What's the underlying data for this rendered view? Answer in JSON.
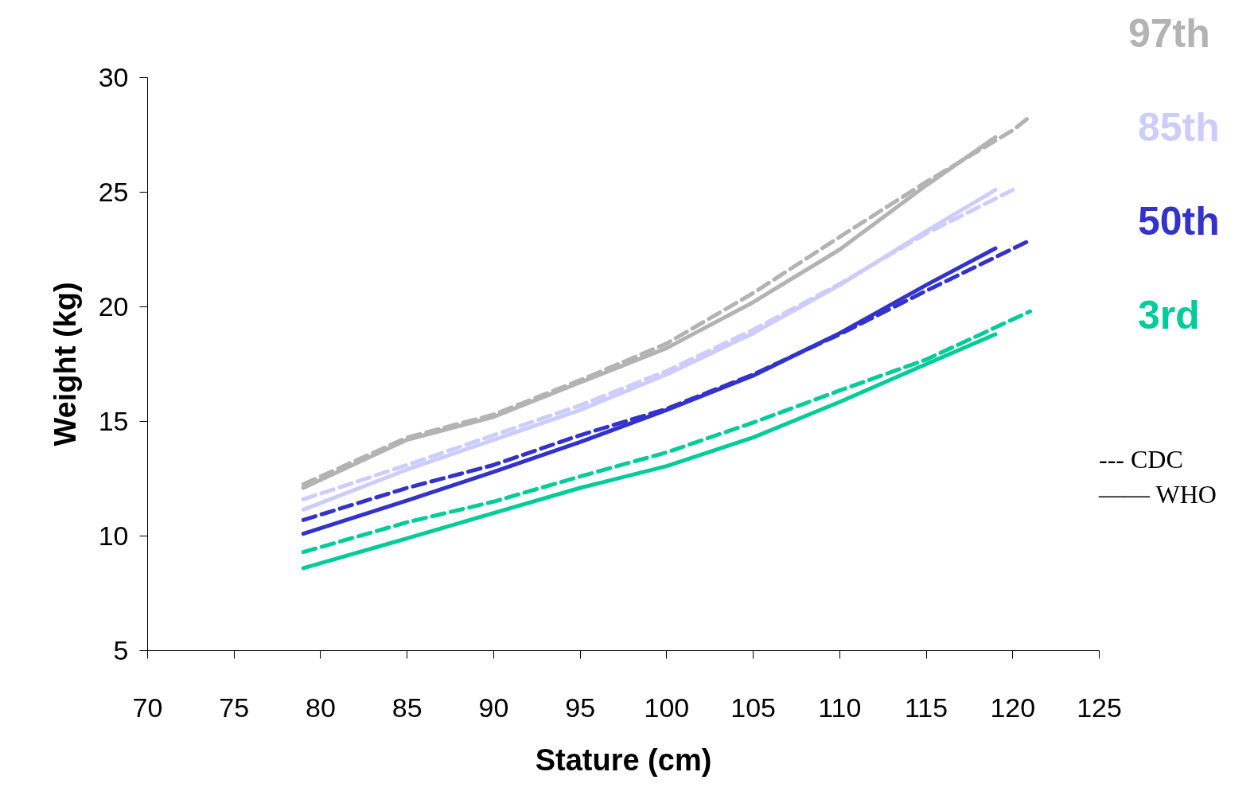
{
  "chart_data": {
    "type": "line",
    "xlabel": "Stature (cm)",
    "ylabel": "Weight (kg)",
    "xlim": [
      70,
      125
    ],
    "xticks": [
      70,
      75,
      80,
      85,
      90,
      95,
      100,
      105,
      110,
      115,
      120,
      125
    ],
    "ylim": [
      5,
      30
    ],
    "yticks": [
      5,
      10,
      15,
      20,
      25,
      30
    ],
    "grid": false,
    "annotations": [
      "--- CDC",
      "—— WHO"
    ],
    "series": [
      {
        "name": "97th",
        "color": "#b3b3b3",
        "line_style": "dashed",
        "x": [
          79,
          85,
          90,
          95,
          100,
          105,
          110,
          115,
          120,
          121
        ],
        "values": [
          12.26,
          14.3,
          15.3,
          16.8,
          18.4,
          20.6,
          23.05,
          25.45,
          27.7,
          28.3
        ]
      },
      {
        "color": "#b3b3b3",
        "line_style": "solid",
        "x": [
          79,
          85,
          90,
          95,
          100,
          105,
          110,
          115,
          119
        ],
        "values": [
          12.1,
          14.2,
          15.2,
          16.7,
          18.2,
          20.2,
          22.5,
          25.3,
          27.4
        ]
      },
      {
        "name": "85th",
        "color": "#ccccff",
        "line_style": "dashed",
        "x": [
          79,
          85,
          90,
          95,
          100,
          105,
          110,
          115,
          120
        ],
        "values": [
          11.6,
          13.1,
          14.4,
          15.7,
          17.2,
          19.0,
          21.0,
          23.2,
          25.1
        ]
      },
      {
        "color": "#ccccff",
        "line_style": "solid",
        "x": [
          79,
          85,
          90,
          95,
          100,
          105,
          110,
          115,
          119
        ],
        "values": [
          11.15,
          12.9,
          14.2,
          15.5,
          17.05,
          18.85,
          20.95,
          23.3,
          25.1
        ]
      },
      {
        "name": "50th",
        "color": "#3333cc",
        "line_style": "dashed",
        "x": [
          79,
          85,
          90,
          95,
          100,
          105,
          110,
          115,
          121
        ],
        "values": [
          10.7,
          12.1,
          13.1,
          14.4,
          15.55,
          17.05,
          18.8,
          20.7,
          22.9
        ]
      },
      {
        "color": "#3333cc",
        "line_style": "solid",
        "x": [
          79,
          85,
          90,
          95,
          100,
          105,
          110,
          115,
          119
        ],
        "values": [
          10.1,
          11.55,
          12.8,
          14.1,
          15.5,
          17.0,
          18.85,
          20.95,
          22.55
        ]
      },
      {
        "name": "3rd",
        "color": "#00cc99",
        "line_style": "dashed",
        "x": [
          79,
          85,
          90,
          95,
          100,
          105,
          110,
          115,
          121
        ],
        "values": [
          9.3,
          10.6,
          11.5,
          12.6,
          13.65,
          14.95,
          16.35,
          17.7,
          19.8
        ]
      },
      {
        "color": "#00cc99",
        "line_style": "solid",
        "x": [
          79,
          85,
          90,
          95,
          100,
          105,
          110,
          115,
          119
        ],
        "values": [
          8.6,
          9.9,
          11.0,
          12.1,
          13.05,
          14.3,
          15.85,
          17.5,
          18.8
        ]
      }
    ]
  }
}
